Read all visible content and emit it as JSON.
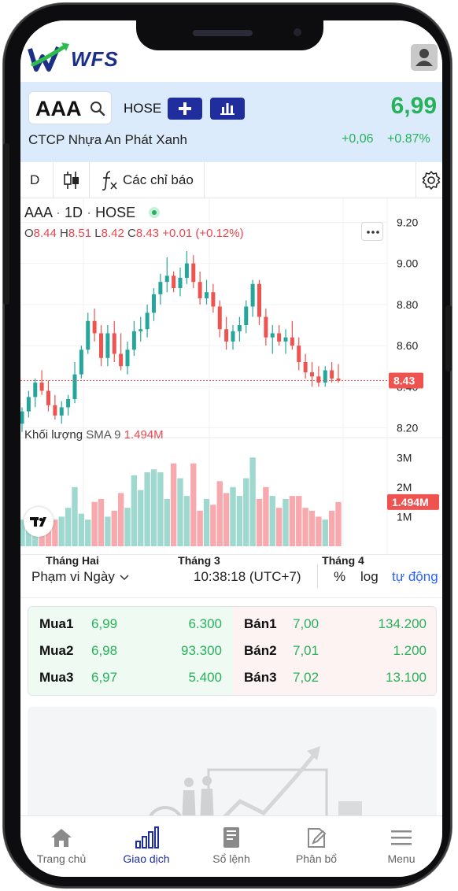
{
  "app": {
    "logo_text": "WFS"
  },
  "stock": {
    "ticker": "AAA",
    "exchange": "HOSE",
    "price": "6,99",
    "company": "CTCP Nhựa An Phát Xanh",
    "change": "+0,06",
    "change_pct": "+0.87%"
  },
  "toolbar": {
    "interval": "D",
    "indicators_label": "Các chỉ báo"
  },
  "chart_legend": {
    "symbol": "AAA",
    "timeframe": "1D",
    "exchange": "HOSE",
    "open_label": "O",
    "open": "8.44",
    "high_label": "H",
    "high": "8.51",
    "low_label": "L",
    "low": "8.42",
    "close_label": "C",
    "close": "8.43",
    "change": "+0.01 (+0.12%)",
    "volume_label": "Khối lượng",
    "sma_label": "SMA 9",
    "volume_value": "1.494M"
  },
  "chart_data": {
    "type": "candlestick",
    "y_ticks": [
      "9.20",
      "9.00",
      "8.80",
      "8.60",
      "8.40",
      "8.20"
    ],
    "ylim": [
      8.16,
      9.24
    ],
    "last_price_label": "8.43",
    "last_price": 8.43,
    "volume_ticks": [
      "3M",
      "2M",
      "1M"
    ],
    "volume_last_label": "1.494M",
    "x_labels": [
      "Tháng Hai",
      "Tháng 3",
      "Tháng 4"
    ],
    "colors": {
      "up": "#26a69a",
      "down": "#ef5350"
    },
    "candles": [
      {
        "o": 8.22,
        "h": 8.3,
        "l": 8.18,
        "c": 8.28
      },
      {
        "o": 8.28,
        "h": 8.38,
        "l": 8.25,
        "c": 8.35
      },
      {
        "o": 8.35,
        "h": 8.44,
        "l": 8.3,
        "c": 8.42
      },
      {
        "o": 8.42,
        "h": 8.48,
        "l": 8.36,
        "c": 8.38
      },
      {
        "o": 8.38,
        "h": 8.43,
        "l": 8.28,
        "c": 8.31
      },
      {
        "o": 8.31,
        "h": 8.36,
        "l": 8.24,
        "c": 8.26
      },
      {
        "o": 8.26,
        "h": 8.33,
        "l": 8.22,
        "c": 8.3
      },
      {
        "o": 8.3,
        "h": 8.36,
        "l": 8.26,
        "c": 8.34
      },
      {
        "o": 8.34,
        "h": 8.52,
        "l": 8.32,
        "c": 8.46
      },
      {
        "o": 8.46,
        "h": 8.6,
        "l": 8.44,
        "c": 8.58
      },
      {
        "o": 8.58,
        "h": 8.76,
        "l": 8.56,
        "c": 8.72
      },
      {
        "o": 8.72,
        "h": 8.78,
        "l": 8.62,
        "c": 8.66
      },
      {
        "o": 8.66,
        "h": 8.7,
        "l": 8.5,
        "c": 8.54
      },
      {
        "o": 8.54,
        "h": 8.7,
        "l": 8.5,
        "c": 8.66
      },
      {
        "o": 8.66,
        "h": 8.72,
        "l": 8.52,
        "c": 8.56
      },
      {
        "o": 8.56,
        "h": 8.66,
        "l": 8.48,
        "c": 8.5
      },
      {
        "o": 8.5,
        "h": 8.62,
        "l": 8.46,
        "c": 8.58
      },
      {
        "o": 8.58,
        "h": 8.72,
        "l": 8.55,
        "c": 8.67
      },
      {
        "o": 8.67,
        "h": 8.74,
        "l": 8.62,
        "c": 8.68
      },
      {
        "o": 8.68,
        "h": 8.8,
        "l": 8.64,
        "c": 8.76
      },
      {
        "o": 8.76,
        "h": 8.88,
        "l": 8.72,
        "c": 8.85
      },
      {
        "o": 8.85,
        "h": 8.95,
        "l": 8.8,
        "c": 8.91
      },
      {
        "o": 8.91,
        "h": 9.03,
        "l": 8.86,
        "c": 8.94
      },
      {
        "o": 8.94,
        "h": 8.96,
        "l": 8.86,
        "c": 8.88
      },
      {
        "o": 8.88,
        "h": 8.98,
        "l": 8.84,
        "c": 8.93
      },
      {
        "o": 8.93,
        "h": 9.06,
        "l": 8.9,
        "c": 9.0
      },
      {
        "o": 9.0,
        "h": 9.04,
        "l": 8.88,
        "c": 8.91
      },
      {
        "o": 8.91,
        "h": 8.96,
        "l": 8.8,
        "c": 8.83
      },
      {
        "o": 8.83,
        "h": 8.92,
        "l": 8.8,
        "c": 8.86
      },
      {
        "o": 8.86,
        "h": 8.9,
        "l": 8.76,
        "c": 8.79
      },
      {
        "o": 8.79,
        "h": 8.82,
        "l": 8.64,
        "c": 8.68
      },
      {
        "o": 8.68,
        "h": 8.74,
        "l": 8.58,
        "c": 8.62
      },
      {
        "o": 8.62,
        "h": 8.7,
        "l": 8.58,
        "c": 8.67
      },
      {
        "o": 8.67,
        "h": 8.74,
        "l": 8.62,
        "c": 8.7
      },
      {
        "o": 8.7,
        "h": 8.82,
        "l": 8.66,
        "c": 8.79
      },
      {
        "o": 8.79,
        "h": 8.92,
        "l": 8.74,
        "c": 8.9
      },
      {
        "o": 8.9,
        "h": 8.92,
        "l": 8.7,
        "c": 8.74
      },
      {
        "o": 8.74,
        "h": 8.78,
        "l": 8.6,
        "c": 8.64
      },
      {
        "o": 8.64,
        "h": 8.7,
        "l": 8.56,
        "c": 8.66
      },
      {
        "o": 8.66,
        "h": 8.7,
        "l": 8.6,
        "c": 8.62
      },
      {
        "o": 8.62,
        "h": 8.68,
        "l": 8.56,
        "c": 8.64
      },
      {
        "o": 8.64,
        "h": 8.72,
        "l": 8.58,
        "c": 8.6
      },
      {
        "o": 8.6,
        "h": 8.64,
        "l": 8.48,
        "c": 8.52
      },
      {
        "o": 8.52,
        "h": 8.56,
        "l": 8.44,
        "c": 8.47
      },
      {
        "o": 8.47,
        "h": 8.52,
        "l": 8.4,
        "c": 8.45
      },
      {
        "o": 8.45,
        "h": 8.5,
        "l": 8.4,
        "c": 8.42
      },
      {
        "o": 8.42,
        "h": 8.5,
        "l": 8.4,
        "c": 8.48
      },
      {
        "o": 8.48,
        "h": 8.52,
        "l": 8.42,
        "c": 8.44
      },
      {
        "o": 8.44,
        "h": 8.51,
        "l": 8.42,
        "c": 8.43
      }
    ],
    "volumes": [
      0.9,
      1.1,
      0.8,
      1.0,
      0.7,
      0.9,
      1.0,
      1.3,
      2.0,
      1.1,
      0.9,
      1.5,
      1.6,
      1.0,
      1.2,
      1.8,
      1.3,
      2.4,
      1.9,
      2.5,
      2.6,
      2.5,
      1.6,
      2.8,
      2.3,
      1.7,
      2.8,
      1.2,
      1.6,
      1.4,
      2.2,
      1.8,
      2.0,
      1.7,
      2.3,
      3.0,
      1.6,
      2.0,
      1.7,
      1.3,
      1.6,
      1.7,
      1.7,
      1.3,
      1.2,
      1.0,
      0.9,
      1.2,
      1.494
    ]
  },
  "range_bar": {
    "range_label": "Phạm vi Ngày",
    "time": "10:38:18 (UTC+7)",
    "percent": "%",
    "log": "log",
    "auto": "tự động"
  },
  "orderbook": {
    "buy": [
      {
        "label": "Mua1",
        "price": "6,99",
        "volume": "6.300"
      },
      {
        "label": "Mua2",
        "price": "6,98",
        "volume": "93.300"
      },
      {
        "label": "Mua3",
        "price": "6,97",
        "volume": "5.400"
      }
    ],
    "sell": [
      {
        "label": "Bán1",
        "price": "7,00",
        "volume": "134.200"
      },
      {
        "label": "Bán2",
        "price": "7,01",
        "volume": "1.200"
      },
      {
        "label": "Bán3",
        "price": "7,02",
        "volume": "13.100"
      }
    ]
  },
  "nav": [
    {
      "label": "Trang chủ",
      "icon": "home-icon"
    },
    {
      "label": "Giao dịch",
      "icon": "bar-chart-icon"
    },
    {
      "label": "Sổ lệnh",
      "icon": "order-book-icon"
    },
    {
      "label": "Phân bổ",
      "icon": "allocation-icon"
    },
    {
      "label": "Menu",
      "icon": "hamburger-icon"
    }
  ]
}
